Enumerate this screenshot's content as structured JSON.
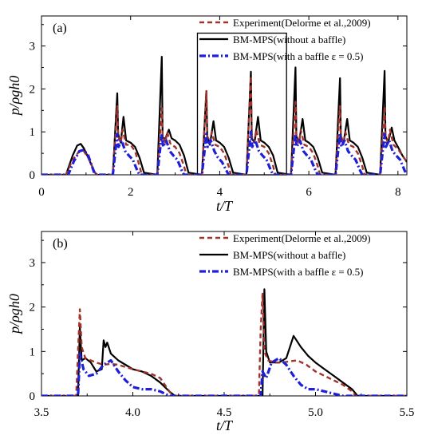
{
  "chart_data": [
    {
      "type": "line",
      "panel_label": "(a)",
      "xlabel": "t/T",
      "ylabel": "p/ρgh0",
      "xlim": [
        0,
        8.2
      ],
      "ylim": [
        0,
        3.7
      ],
      "xticks": [
        0,
        2,
        4,
        6,
        8
      ],
      "yticks": [
        0,
        1,
        2,
        3
      ],
      "grid": false,
      "legend": "top-right",
      "highlight_box": {
        "x": [
          3.5,
          5.5
        ],
        "y": [
          0,
          3.3
        ]
      },
      "series": [
        {
          "name": "Experiment(Delorme et al.,2009)",
          "color": "#a0332b",
          "style": "dashed",
          "x": [
            0,
            0.55,
            0.7,
            0.85,
            0.95,
            1.05,
            1.2,
            1.25,
            1.6,
            1.7,
            1.72,
            1.78,
            1.82,
            1.9,
            2.0,
            2.1,
            2.2,
            2.25,
            2.6,
            2.7,
            2.72,
            2.78,
            2.82,
            2.9,
            3.0,
            3.1,
            3.2,
            3.25,
            3.6,
            3.7,
            3.72,
            3.78,
            3.82,
            3.9,
            4.0,
            4.1,
            4.2,
            4.25,
            4.6,
            4.7,
            4.72,
            4.78,
            4.82,
            4.9,
            5.0,
            5.1,
            5.2,
            5.25,
            5.6,
            5.7,
            5.72,
            5.78,
            5.82,
            5.9,
            6.0,
            6.1,
            6.2,
            6.25,
            6.6,
            6.7,
            6.72,
            6.78,
            6.82,
            6.9,
            7.0,
            7.1,
            7.2,
            7.25,
            7.6,
            7.7,
            7.72,
            7.78,
            7.82,
            7.9,
            8.0,
            8.1,
            8.2
          ],
          "y": [
            0,
            0,
            0.35,
            0.55,
            0.55,
            0.4,
            0.05,
            0,
            0,
            1.6,
            0.9,
            0.75,
            1.05,
            0.7,
            0.7,
            0.55,
            0.2,
            0,
            0,
            1.55,
            0.9,
            0.75,
            1.0,
            0.7,
            0.65,
            0.5,
            0.2,
            0,
            0,
            1.95,
            0.9,
            0.75,
            1.0,
            0.7,
            0.65,
            0.5,
            0.2,
            0,
            0,
            2.3,
            0.9,
            0.75,
            1.05,
            0.7,
            0.65,
            0.5,
            0.2,
            0,
            0,
            1.7,
            0.9,
            0.75,
            1.05,
            0.7,
            0.65,
            0.5,
            0.2,
            0,
            0,
            1.6,
            0.9,
            0.75,
            1.0,
            0.7,
            0.65,
            0.5,
            0.2,
            0,
            0,
            1.6,
            0.9,
            0.75,
            1.05,
            0.7,
            0.6,
            0.45,
            0.3
          ]
        },
        {
          "name": "BM-MPS(without a baffle)",
          "color": "#000000",
          "style": "solid",
          "x": [
            0,
            0.55,
            0.7,
            0.8,
            0.88,
            0.95,
            1.05,
            1.2,
            1.25,
            1.6,
            1.7,
            1.72,
            1.78,
            1.84,
            1.9,
            2.0,
            2.1,
            2.2,
            2.3,
            2.6,
            2.7,
            2.72,
            2.78,
            2.86,
            2.92,
            3.0,
            3.1,
            3.2,
            3.3,
            3.6,
            3.7,
            3.72,
            3.78,
            3.86,
            3.92,
            4.0,
            4.1,
            4.2,
            4.3,
            4.6,
            4.7,
            4.72,
            4.78,
            4.86,
            4.92,
            5.0,
            5.1,
            5.2,
            5.3,
            5.6,
            5.7,
            5.72,
            5.78,
            5.86,
            5.92,
            6.0,
            6.1,
            6.2,
            6.3,
            6.6,
            6.7,
            6.72,
            6.78,
            6.86,
            6.92,
            7.0,
            7.1,
            7.2,
            7.3,
            7.6,
            7.7,
            7.72,
            7.78,
            7.86,
            7.92,
            8.0,
            8.1,
            8.2
          ],
          "y": [
            0,
            0,
            0.45,
            0.68,
            0.72,
            0.62,
            0.4,
            0.05,
            0,
            0,
            1.9,
            0.95,
            0.75,
            1.35,
            0.8,
            0.75,
            0.65,
            0.4,
            0.05,
            0,
            2.75,
            0.85,
            0.85,
            1.05,
            0.85,
            0.8,
            0.7,
            0.45,
            0.05,
            0,
            1.95,
            0.9,
            0.7,
            1.25,
            0.8,
            0.75,
            0.65,
            0.4,
            0.05,
            0,
            2.4,
            0.85,
            0.75,
            1.35,
            0.8,
            0.75,
            0.65,
            0.45,
            0.05,
            0,
            2.5,
            0.9,
            0.75,
            1.3,
            0.8,
            0.75,
            0.65,
            0.4,
            0.05,
            0,
            2.25,
            0.9,
            0.75,
            1.3,
            0.8,
            0.75,
            0.65,
            0.4,
            0.05,
            0,
            2.42,
            0.9,
            0.75,
            1.1,
            0.8,
            0.65,
            0.45,
            0.3
          ]
        },
        {
          "name": "BM-MPS(with a baffle ε = 0.5)",
          "color": "#1f1fd6",
          "style": "dashdot",
          "x": [
            0,
            0.6,
            0.72,
            0.85,
            0.95,
            1.05,
            1.15,
            1.2,
            1.6,
            1.7,
            1.73,
            1.8,
            1.88,
            1.96,
            2.05,
            2.15,
            2.2,
            2.6,
            2.7,
            2.73,
            2.8,
            2.88,
            2.96,
            3.05,
            3.15,
            3.2,
            3.6,
            3.7,
            3.73,
            3.8,
            3.88,
            3.96,
            4.05,
            4.15,
            4.2,
            4.6,
            4.7,
            4.73,
            4.8,
            4.88,
            4.96,
            5.05,
            5.15,
            5.2,
            5.6,
            5.7,
            5.73,
            5.8,
            5.88,
            5.96,
            6.05,
            6.15,
            6.2,
            6.6,
            6.7,
            6.73,
            6.8,
            6.88,
            6.96,
            7.05,
            7.15,
            7.2,
            7.6,
            7.7,
            7.73,
            7.8,
            7.88,
            7.96,
            8.05,
            8.15,
            8.2
          ],
          "y": [
            0,
            0,
            0.3,
            0.55,
            0.58,
            0.45,
            0.15,
            0,
            0,
            0.95,
            0.65,
            0.8,
            0.55,
            0.45,
            0.35,
            0.1,
            0,
            0,
            0.95,
            0.65,
            0.8,
            0.55,
            0.45,
            0.35,
            0.1,
            0,
            0,
            0.95,
            0.65,
            0.8,
            0.55,
            0.4,
            0.3,
            0.1,
            0,
            0,
            1.0,
            0.65,
            0.8,
            0.55,
            0.45,
            0.35,
            0.1,
            0,
            0,
            0.95,
            0.65,
            0.8,
            0.55,
            0.45,
            0.35,
            0.1,
            0,
            0,
            0.95,
            0.65,
            0.8,
            0.55,
            0.45,
            0.35,
            0.1,
            0,
            0,
            0.95,
            0.65,
            0.8,
            0.55,
            0.45,
            0.35,
            0.1,
            0
          ]
        }
      ]
    },
    {
      "type": "line",
      "panel_label": "(b)",
      "xlabel": "t/T",
      "ylabel": "p/ρgh0",
      "xlim": [
        3.5,
        5.5
      ],
      "ylim": [
        0,
        3.7
      ],
      "xticks": [
        3.5,
        4.0,
        4.5,
        5.0,
        5.5
      ],
      "yticks": [
        0,
        1,
        2,
        3
      ],
      "grid": false,
      "legend": "top-right",
      "series": [
        {
          "name": "Experiment(Delorme et al.,2009)",
          "color": "#a0332b",
          "style": "dashed",
          "x": [
            3.5,
            3.69,
            3.7,
            3.71,
            3.72,
            3.74,
            3.77,
            3.8,
            3.84,
            3.88,
            3.92,
            3.96,
            4.0,
            4.05,
            4.1,
            4.15,
            4.2,
            4.22,
            4.5,
            4.69,
            4.7,
            4.71,
            4.72,
            4.74,
            4.78,
            4.82,
            4.86,
            4.9,
            4.95,
            5.0,
            5.05,
            5.1,
            5.15,
            5.2,
            5.22,
            5.5
          ],
          "y": [
            0,
            0,
            1.0,
            1.95,
            1.1,
            0.85,
            0.8,
            0.75,
            0.7,
            0.72,
            0.7,
            0.65,
            0.6,
            0.55,
            0.5,
            0.4,
            0.1,
            0,
            0,
            0,
            1.5,
            2.3,
            1.0,
            0.8,
            0.75,
            0.75,
            0.78,
            0.8,
            0.7,
            0.55,
            0.45,
            0.35,
            0.25,
            0.1,
            0,
            0
          ]
        },
        {
          "name": "BM-MPS(without a baffle)",
          "color": "#000000",
          "style": "solid",
          "x": [
            3.5,
            3.7,
            3.71,
            3.72,
            3.74,
            3.77,
            3.8,
            3.83,
            3.84,
            3.85,
            3.86,
            3.88,
            3.92,
            3.96,
            4.0,
            4.05,
            4.1,
            4.15,
            4.2,
            4.23,
            4.5,
            4.71,
            4.72,
            4.73,
            4.75,
            4.8,
            4.84,
            4.88,
            4.92,
            4.96,
            5.0,
            5.05,
            5.1,
            5.15,
            5.2,
            5.23,
            5.5
          ],
          "y": [
            0,
            0,
            1.55,
            0.8,
            0.85,
            0.75,
            0.55,
            0.6,
            1.25,
            1.1,
            1.2,
            0.95,
            0.8,
            0.7,
            0.6,
            0.55,
            0.45,
            0.3,
            0.1,
            0,
            0,
            0,
            2.4,
            1.0,
            0.75,
            0.75,
            0.85,
            1.35,
            1.1,
            0.9,
            0.75,
            0.6,
            0.45,
            0.3,
            0.15,
            0,
            0
          ]
        },
        {
          "name": "BM-MPS(with a baffle ε = 0.5)",
          "color": "#1f1fd6",
          "style": "dashdot",
          "x": [
            3.5,
            3.7,
            3.71,
            3.73,
            3.76,
            3.8,
            3.84,
            3.88,
            3.92,
            3.96,
            4.0,
            4.05,
            4.1,
            4.15,
            4.2,
            4.5,
            4.7,
            4.71,
            4.73,
            4.76,
            4.8,
            4.84,
            4.88,
            4.92,
            4.96,
            5.0,
            5.05,
            5.1,
            5.15,
            5.5
          ],
          "y": [
            0,
            0,
            0.95,
            0.6,
            0.45,
            0.5,
            0.7,
            0.8,
            0.55,
            0.35,
            0.2,
            0.15,
            0.15,
            0.1,
            0,
            0,
            0,
            0.55,
            0.4,
            0.75,
            0.85,
            0.7,
            0.45,
            0.25,
            0.15,
            0.15,
            0.1,
            0.05,
            0,
            0
          ]
        }
      ]
    }
  ]
}
